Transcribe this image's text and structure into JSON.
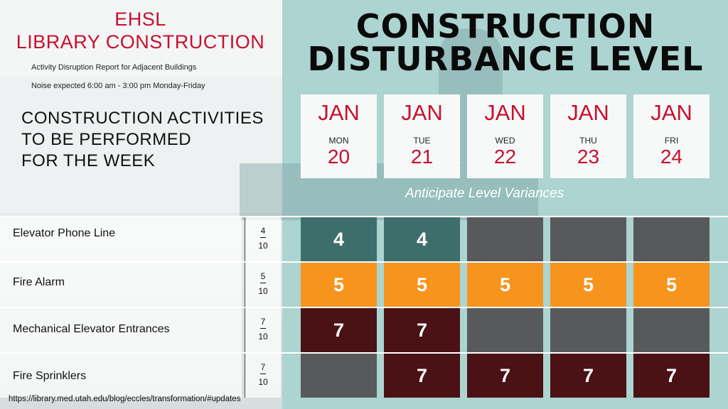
{
  "header": {
    "org": "EHSL",
    "project": "LIBRARY CONSTRUCTION",
    "report_subtitle": "Activity Disruption Report for Adjacent Buildings",
    "noise_note": "Noise expected 6:00 am - 3:00 pm Monday-Friday"
  },
  "section_title_lines": [
    "CONSTRUCTION ACTIVITIES",
    "TO BE PERFORMED",
    "FOR THE WEEK"
  ],
  "main_title_lines": [
    "CONSTRUCTION",
    "DISTURBANCE LEVEL"
  ],
  "days": [
    {
      "month": "JAN",
      "weekday": "MON",
      "day": "20"
    },
    {
      "month": "JAN",
      "weekday": "TUE",
      "day": "21"
    },
    {
      "month": "JAN",
      "weekday": "WED",
      "day": "22"
    },
    {
      "month": "JAN",
      "weekday": "THU",
      "day": "23"
    },
    {
      "month": "JAN",
      "weekday": "FRI",
      "day": "24"
    }
  ],
  "variance_note": "Anticipate Level Variances",
  "activities": [
    {
      "name": "Elevator Phone Line",
      "level_num": "4",
      "level_den": "10",
      "cells": [
        "4",
        "4",
        null,
        null,
        null
      ]
    },
    {
      "name": "Fire Alarm",
      "level_num": "5",
      "level_den": "10",
      "cells": [
        "5",
        "5",
        "5",
        "5",
        "5"
      ]
    },
    {
      "name": "Mechanical Elevator Entrances",
      "level_num": "7",
      "level_den": "10",
      "cells": [
        "7",
        "7",
        null,
        null,
        null
      ]
    },
    {
      "name": "Fire Sprinklers",
      "level_num": "7",
      "level_den": "10",
      "cells": [
        null,
        "7",
        "7",
        "7",
        "7"
      ]
    }
  ],
  "level_colors": {
    "4": "#3e6e6c",
    "5": "#f7941d",
    "7": "#4a1214",
    "none": "#58595b"
  },
  "footer_url": "https://library.med.utah.edu/blog/eccles/transformation/#updates"
}
